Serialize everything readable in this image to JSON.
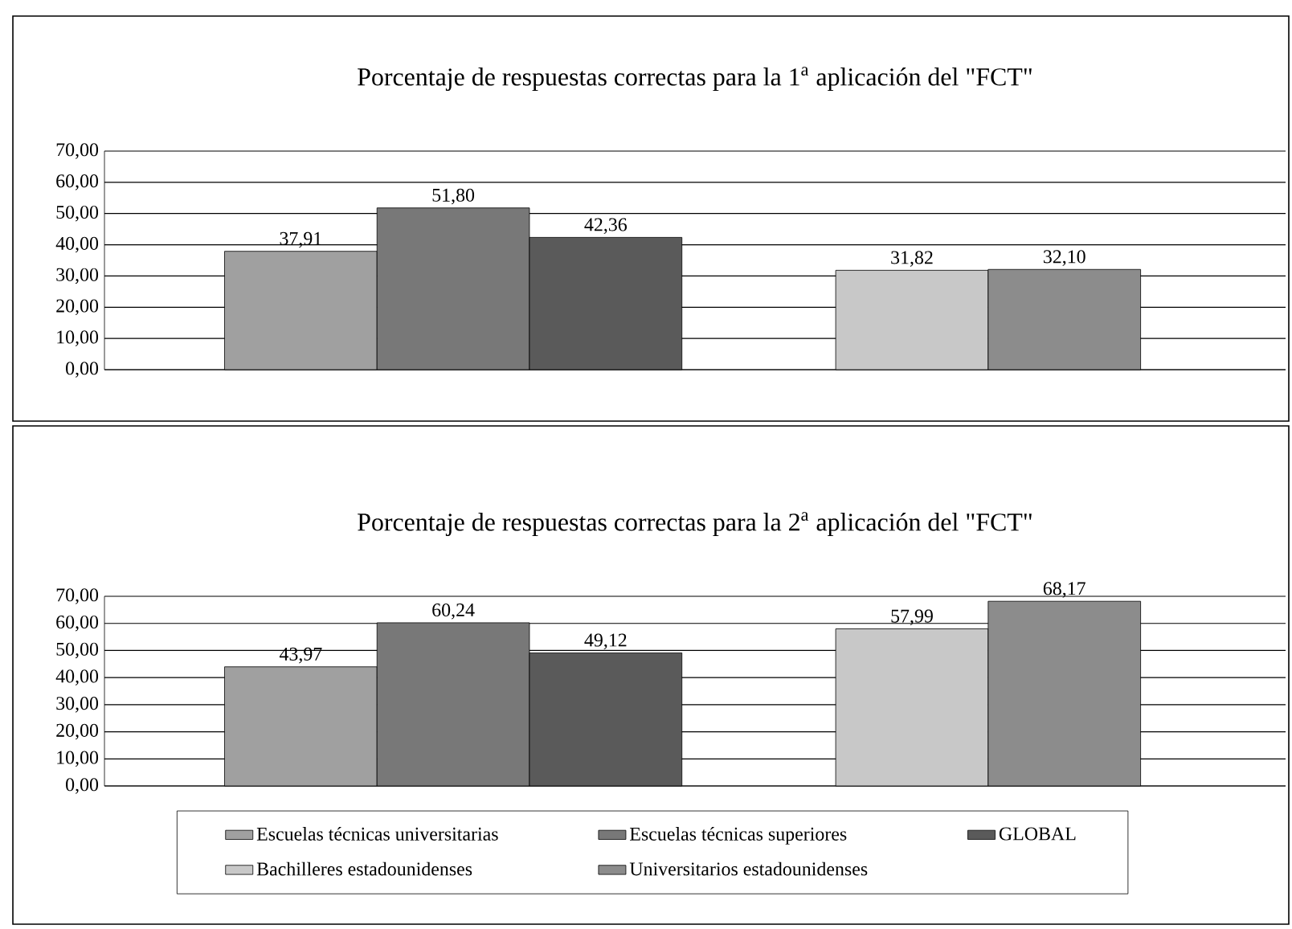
{
  "chart_data": [
    {
      "type": "bar",
      "title": "Porcentaje de respuestas correctas para la 1$^{a}$ aplicación del \"FCT\"",
      "categories": [
        null,
        null
      ],
      "series": [
        {
          "color": "#a0a0a0",
          "values": [
            37.91,
            null
          ],
          "value_labels": [
            "37,91",
            null
          ]
        },
        {
          "color": "#787878",
          "values": [
            51.8,
            null
          ],
          "value_labels": [
            "51,80",
            null
          ]
        },
        {
          "color": "#5a5a5a",
          "values": [
            42.36,
            null
          ],
          "value_labels": [
            "42,36",
            null
          ]
        },
        {
          "color": "#c8c8c8",
          "values": [
            null,
            31.82
          ],
          "value_labels": [
            null,
            "31,82"
          ]
        },
        {
          "color": "#8c8c8c",
          "values": [
            null,
            32.1
          ],
          "value_labels": [
            null,
            "32,10"
          ]
        }
      ],
      "ylim": [
        0,
        70
      ],
      "yticks": [
        {
          "value": 0,
          "label": "0,00"
        },
        {
          "value": 10,
          "label": "10,00"
        },
        {
          "value": 20,
          "label": "20,00"
        },
        {
          "value": 30,
          "label": "30,00"
        },
        {
          "value": 40,
          "label": "40,00"
        },
        {
          "value": 50,
          "label": "50,00"
        },
        {
          "value": 60,
          "label": "60,00"
        },
        {
          "value": 70,
          "label": "70,00"
        }
      ],
      "grid": "y",
      "legend": false
    },
    {
      "type": "bar",
      "title": "Porcentaje de respuestas correctas para la 2$^{a}$ aplicación del \"FCT\"",
      "categories": [
        null,
        null
      ],
      "series": [
        {
          "name": "Escuelas técnicas universitarias",
          "color": "#a0a0a0",
          "values": [
            43.97,
            null
          ],
          "value_labels": [
            "43,97",
            null
          ]
        },
        {
          "name": "Escuelas técnicas superiores",
          "color": "#787878",
          "values": [
            60.24,
            null
          ],
          "value_labels": [
            "60,24",
            null
          ]
        },
        {
          "name": "GLOBAL",
          "color": "#5a5a5a",
          "values": [
            49.12,
            null
          ],
          "value_labels": [
            "49,12",
            null
          ]
        },
        {
          "name": "Bachilleres estadounidenses",
          "color": "#c8c8c8",
          "values": [
            null,
            57.99
          ],
          "value_labels": [
            null,
            "57,99"
          ]
        },
        {
          "name": "Universitarios estadounidenses",
          "color": "#8c8c8c",
          "values": [
            null,
            68.17
          ],
          "value_labels": [
            null,
            "68,17"
          ]
        }
      ],
      "ylim": [
        0,
        70
      ],
      "yticks": [
        {
          "value": 0,
          "label": "0,00"
        },
        {
          "value": 10,
          "label": "10,00"
        },
        {
          "value": 20,
          "label": "20,00"
        },
        {
          "value": 30,
          "label": "30,00"
        },
        {
          "value": 40,
          "label": "40,00"
        },
        {
          "value": 50,
          "label": "50,00"
        },
        {
          "value": 60,
          "label": "60,00"
        },
        {
          "value": 70,
          "label": "70,00"
        }
      ],
      "grid": "y",
      "legend": "bottom"
    }
  ]
}
